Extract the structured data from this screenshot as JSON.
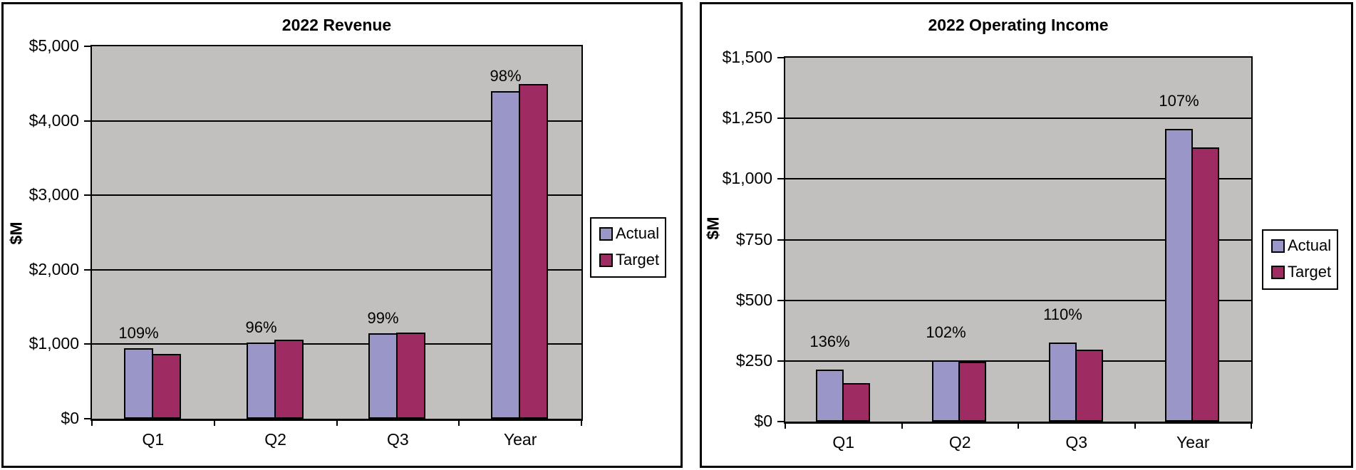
{
  "chart_data": [
    {
      "type": "bar",
      "title": "2022 Revenue",
      "ylabel": "$M",
      "xlabel": "",
      "categories": [
        "Q1",
        "Q2",
        "Q3",
        "Year"
      ],
      "series": [
        {
          "name": "Actual",
          "color": "#9B96C8",
          "values": [
            950,
            1020,
            1150,
            4400
          ]
        },
        {
          "name": "Target",
          "color": "#9E2C63",
          "values": [
            870,
            1065,
            1160,
            4490
          ]
        }
      ],
      "bar_labels": [
        "109%",
        "96%",
        "99%",
        "98%"
      ],
      "y_tick_labels": [
        "$0",
        "$1,000",
        "$2,000",
        "$3,000",
        "$4,000",
        "$5,000"
      ],
      "ylim": [
        0,
        5000
      ],
      "grid": "horizontal",
      "legend_position": "right-middle",
      "legend_entries": [
        "Actual",
        "Target"
      ],
      "plot_background": "#C1C0BE"
    },
    {
      "type": "bar",
      "title": "2022 Operating Income",
      "ylabel": "$M",
      "xlabel": "",
      "categories": [
        "Q1",
        "Q2",
        "Q3",
        "Year"
      ],
      "series": [
        {
          "name": "Actual",
          "color": "#9B96C8",
          "values": [
            215,
            253,
            327,
            1205
          ]
        },
        {
          "name": "Target",
          "color": "#9E2C63",
          "values": [
            158,
            248,
            297,
            1130
          ]
        }
      ],
      "bar_labels": [
        "136%",
        "102%",
        "110%",
        "107%"
      ],
      "y_tick_labels": [
        "$0",
        "$250",
        "$500",
        "$750",
        "$1,000",
        "$1,250",
        "$1,500"
      ],
      "ylim": [
        0,
        1500
      ],
      "grid": "horizontal",
      "legend_position": "right-middle",
      "legend_entries": [
        "Actual",
        "Target"
      ],
      "plot_background": "#C1C0BE"
    }
  ],
  "colors": {
    "actual": "#9B96C8",
    "target": "#9E2C63",
    "plot_background": "#C1C0BE",
    "border": "#000000"
  }
}
